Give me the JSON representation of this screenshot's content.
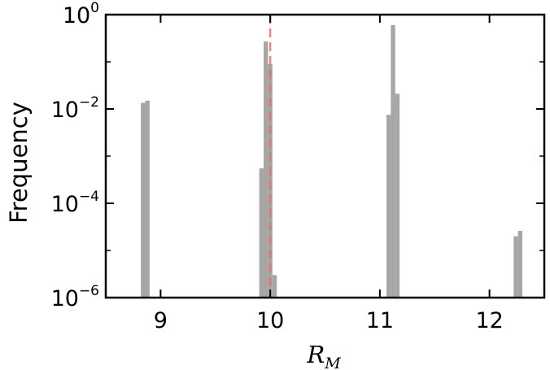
{
  "chart_data": {
    "type": "bar",
    "xlabel": "R",
    "xlabel_subscript": "M",
    "ylabel": "Frequency",
    "xlim": [
      8.5,
      12.5
    ],
    "ylim": [
      1e-06,
      1
    ],
    "yscale": "log",
    "grid": false,
    "bar_color": "#a6a6a6",
    "reference_line": {
      "x": 10.0,
      "color": "#e07070",
      "style": "dashed"
    },
    "x_ticks": [
      {
        "value": 9,
        "label": "9"
      },
      {
        "value": 10,
        "label": "10"
      },
      {
        "value": 11,
        "label": "11"
      },
      {
        "value": 12,
        "label": "12"
      }
    ],
    "y_ticks": [
      {
        "value": 1,
        "base": "10",
        "exp": "0"
      },
      {
        "value": 0.01,
        "base": "10",
        "exp": "−2"
      },
      {
        "value": 0.0001,
        "base": "10",
        "exp": "−4"
      },
      {
        "value": 1e-06,
        "base": "10",
        "exp": "−6"
      }
    ],
    "bin_width": 0.04,
    "bins": [
      {
        "x": 8.84,
        "y": 0.0135
      },
      {
        "x": 8.88,
        "y": 0.015
      },
      {
        "x": 9.92,
        "y": 0.00055
      },
      {
        "x": 9.96,
        "y": 0.27
      },
      {
        "x": 10.0,
        "y": 0.09
      },
      {
        "x": 10.04,
        "y": 3e-06
      },
      {
        "x": 11.08,
        "y": 0.0075
      },
      {
        "x": 11.12,
        "y": 0.6
      },
      {
        "x": 11.16,
        "y": 0.021
      },
      {
        "x": 12.24,
        "y": 2e-05
      },
      {
        "x": 12.28,
        "y": 2.6e-05
      }
    ]
  }
}
